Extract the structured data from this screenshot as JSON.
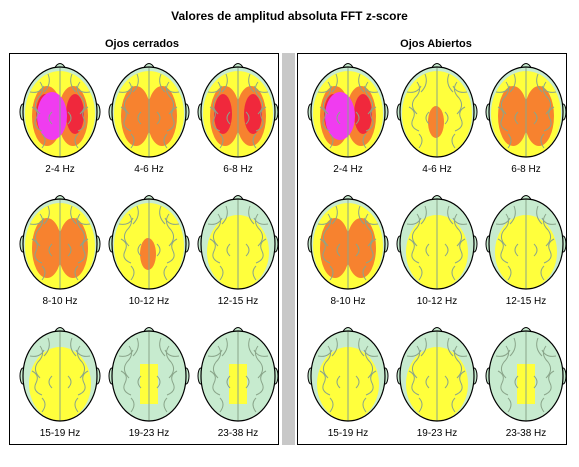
{
  "title": "Valores de amplitud absoluta FFT z-score",
  "colors": {
    "scalp_green": "#c7ebcf",
    "z_yellow": "#ffff3c",
    "z_orange": "#f7822f",
    "z_red": "#f0283c",
    "z_magenta": "#f03cf0",
    "sulci": "#8aa58a"
  },
  "panels": [
    {
      "title": "Ojos cerrados",
      "maps": [
        {
          "label": "2-4 Hz",
          "level": 4
        },
        {
          "label": "4-6 Hz",
          "level": 2
        },
        {
          "label": "6-8 Hz",
          "level": 3
        },
        {
          "label": "8-10 Hz",
          "level": 2
        },
        {
          "label": "10-12 Hz",
          "level": 1
        },
        {
          "label": "12-15 Hz",
          "level": 0
        },
        {
          "label": "15-19 Hz",
          "level": 0
        },
        {
          "label": "19-23 Hz",
          "level": -1
        },
        {
          "label": "23-38 Hz",
          "level": -1
        }
      ]
    },
    {
      "title": "Ojos Abiertos",
      "maps": [
        {
          "label": "2-4 Hz",
          "level": 4
        },
        {
          "label": "4-6 Hz",
          "level": 1
        },
        {
          "label": "6-8 Hz",
          "level": 2
        },
        {
          "label": "8-10 Hz",
          "level": 2
        },
        {
          "label": "10-12 Hz",
          "level": 0
        },
        {
          "label": "12-15 Hz",
          "level": 0
        },
        {
          "label": "15-19 Hz",
          "level": 0
        },
        {
          "label": "19-23 Hz",
          "level": 0
        },
        {
          "label": "23-38 Hz",
          "level": -1
        }
      ]
    }
  ]
}
